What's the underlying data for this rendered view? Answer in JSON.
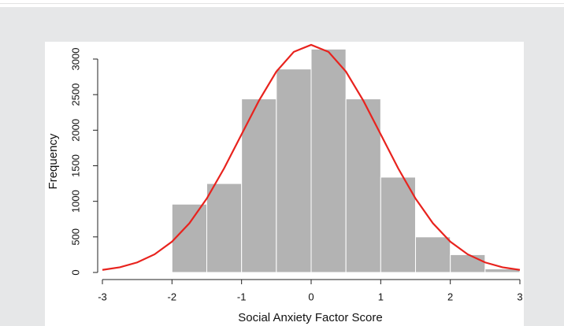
{
  "chart_data": {
    "type": "histogram",
    "xlabel": "Social Anxiety Factor Score",
    "ylabel": "Frequency",
    "bins": [
      -2,
      -1.5,
      -1,
      -0.5,
      0,
      0.5,
      1,
      1.5,
      2,
      2.5,
      3
    ],
    "values": [
      960,
      1250,
      2440,
      2860,
      3140,
      2440,
      1340,
      500,
      250,
      50
    ],
    "color": "#b3b3b3",
    "curve": {
      "color": "#e8231e",
      "x": [
        -3,
        -2.75,
        -2.5,
        -2.25,
        -2,
        -1.75,
        -1.5,
        -1.25,
        -1,
        -0.75,
        -0.5,
        -0.25,
        0,
        0.25,
        0.5,
        0.75,
        1,
        1.25,
        1.5,
        1.75,
        2,
        2.25,
        2.5,
        2.75,
        3
      ],
      "values": [
        36,
        73,
        141,
        255,
        433,
        692,
        1039,
        1465,
        1941,
        2415,
        2824,
        3101,
        3200,
        3101,
        2824,
        2415,
        1941,
        1465,
        1039,
        692,
        433,
        255,
        141,
        73,
        36
      ]
    },
    "xlim": [
      -3,
      3
    ],
    "xticks": [
      -3,
      -2,
      -1,
      0,
      1,
      2,
      3
    ],
    "ylim": [
      0,
      3000
    ],
    "yticks": [
      0,
      500,
      1000,
      1500,
      2000,
      2500,
      3000
    ]
  }
}
